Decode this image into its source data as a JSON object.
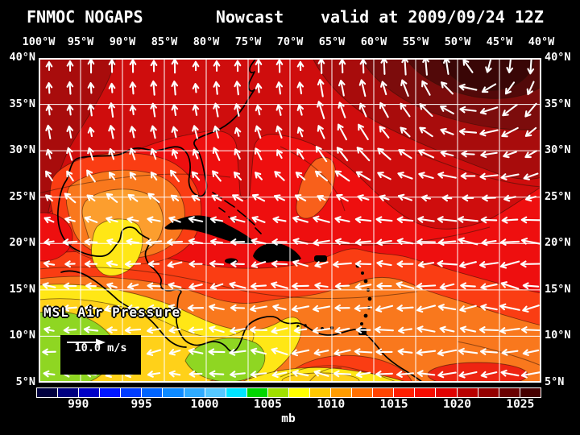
{
  "title": {
    "left": "FNMOC NOGAPS",
    "center": "Nowcast",
    "right": "valid at 2009/09/24 12Z"
  },
  "axes": {
    "lon_labels": [
      "100°W",
      "95°W",
      "90°W",
      "85°W",
      "80°W",
      "75°W",
      "70°W",
      "65°W",
      "60°W",
      "55°W",
      "50°W",
      "45°W",
      "40°W"
    ],
    "lat_labels": [
      "40°N",
      "35°N",
      "30°N",
      "25°N",
      "20°N",
      "15°N",
      "10°N",
      "5°N"
    ]
  },
  "overlay": {
    "field_label": "MSL Air Pressure",
    "wind_scale_label": "10.0 m/s"
  },
  "colorbar": {
    "unit": "mb",
    "ticks": [
      "990",
      "995",
      "1000",
      "1005",
      "1010",
      "1015",
      "1020",
      "1025"
    ],
    "cell_colors": [
      "#00003e",
      "#000080",
      "#0000c6",
      "#0016ff",
      "#003cff",
      "#0064ff",
      "#0e8aff",
      "#2fabff",
      "#55c8ff",
      "#00e4ff",
      "#00d600",
      "#a0e000",
      "#ffff00",
      "#ffc800",
      "#ff9c00",
      "#ff7000",
      "#ff4400",
      "#ff1e00",
      "#f60b00",
      "#e00000",
      "#b80000",
      "#940000",
      "#6a0000",
      "#450000"
    ]
  },
  "map_palette": {
    "red_bright": "#ee0f0f",
    "red_band": "#cf0d0d",
    "red_dark": "#a80c0c",
    "red_deeper": "#7c0c0c",
    "maroon": "#520909",
    "maroon_dark": "#390606",
    "red_orange": "#fa3d13",
    "orange": "#f9781d",
    "orange_light": "#fc9e2e",
    "orange_blob": "#f8601b",
    "red_patch": "#ee2412",
    "yellow": "#ffe716",
    "gold": "#ffd119",
    "green": "#8fd622",
    "grid": "#ffffff",
    "coast": "#000000",
    "arrow": "#ffffff"
  }
}
